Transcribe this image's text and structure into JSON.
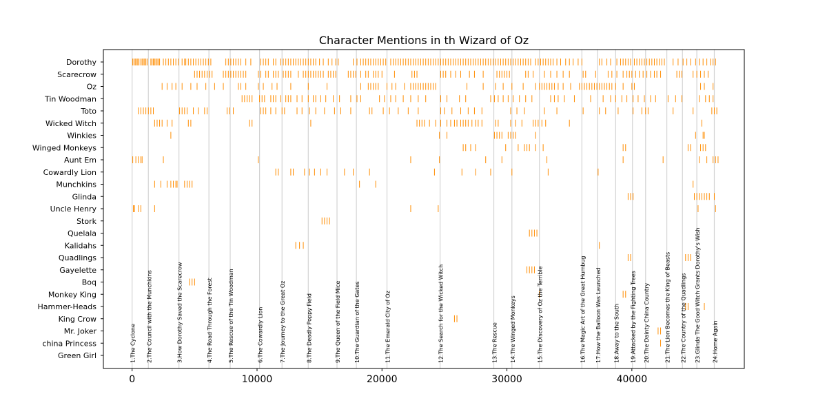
{
  "chart_data": {
    "type": "scatter",
    "title": "Character Mentions in th Wizard of Oz",
    "xlabel": "",
    "ylabel": "",
    "xlim": [
      -2300,
      49000
    ],
    "x_ticks": [
      {
        "value": 0,
        "label": "0"
      },
      {
        "value": 10000,
        "label": "10000"
      },
      {
        "value": 20000,
        "label": "20000"
      },
      {
        "value": 30000,
        "label": "30000"
      },
      {
        "value": 40000,
        "label": "40000"
      }
    ],
    "grid": false,
    "mark_color": "#ff8c00",
    "chapter_line_color": "#d3d3d3",
    "characters": [
      "Dorothy",
      "Scarecrow",
      "Oz",
      "Tin Woodman",
      "Toto",
      "Wicked Witch",
      "Winkies",
      "Winged Monkeys",
      "Aunt Em",
      "Cowardly Lion",
      "Munchkins",
      "Glinda",
      "Uncle Henry",
      "Stork",
      "Quelala",
      "Kalidahs",
      "Quadlings",
      "Gayelette",
      "Boq",
      "Monkey King",
      "Hammer-Heads",
      "King Crow",
      "Mr. Joker",
      "china Princess",
      "Green Girl"
    ],
    "chapters": [
      {
        "x": 0,
        "label": "1.The Cyclone"
      },
      {
        "x": 1300,
        "label": "2.The Council with the Munchkins"
      },
      {
        "x": 3750,
        "label": "3.How Dorothy Saved the Scarecrow"
      },
      {
        "x": 6150,
        "label": "4.The Road Through the Forest"
      },
      {
        "x": 7850,
        "label": "5.The Rescue of the Tin Woodman"
      },
      {
        "x": 10200,
        "label": "6.The Cowardly Lion"
      },
      {
        "x": 12000,
        "label": "7.The Journey to the Great Oz"
      },
      {
        "x": 14100,
        "label": "8.The Deadly Poppy Field"
      },
      {
        "x": 16400,
        "label": "9.The Queen of the Field Mice"
      },
      {
        "x": 17950,
        "label": "10.The Guardian of the Gates"
      },
      {
        "x": 20400,
        "label": "11.The Emerald City of Oz"
      },
      {
        "x": 24650,
        "label": "12.The Search for the Wicked Witch"
      },
      {
        "x": 28950,
        "label": "13.The Rescue"
      },
      {
        "x": 30400,
        "label": "14.The Winged Monkeys"
      },
      {
        "x": 32600,
        "label": "15.The Discovery of Oz the Terrible"
      },
      {
        "x": 36000,
        "label": "16.The Magic Art of the Great Humbug"
      },
      {
        "x": 37250,
        "label": "17.How the Balloon Was Launched"
      },
      {
        "x": 38700,
        "label": "18.Away to the South"
      },
      {
        "x": 40050,
        "label": "19.Attacked by the Fighting Trees"
      },
      {
        "x": 41100,
        "label": "20.The Dainty China Country"
      },
      {
        "x": 42800,
        "label": "21.The Lion Becomes the King of Beasts"
      },
      {
        "x": 44050,
        "label": "22.The Country of the Quadlings"
      },
      {
        "x": 45200,
        "label": "23.Glinda The Good Witch Grants Dorothy's Wish"
      },
      {
        "x": 46600,
        "label": "24.Home Again"
      }
    ],
    "series": [
      {
        "name": "Dorothy",
        "x": [
          50,
          150,
          250,
          350,
          450,
          550,
          700,
          800,
          900,
          1000,
          1100,
          1200,
          1500,
          1600,
          1700,
          1800,
          1900,
          2000,
          2100,
          2200,
          2500,
          2700,
          2900,
          3100,
          3300,
          3500,
          3700,
          4000,
          4200,
          4300,
          4500,
          4700,
          4900,
          5100,
          5300,
          5500,
          5700,
          5900,
          6100,
          6300,
          7500,
          7700,
          7900,
          8100,
          8300,
          8500,
          8700,
          9100,
          9500,
          10300,
          10500,
          10700,
          10900,
          11300,
          11500,
          11900,
          12100,
          12300,
          12500,
          12700,
          12900,
          13100,
          13300,
          13500,
          13700,
          13900,
          14100,
          14300,
          14500,
          14700,
          15000,
          15300,
          15700,
          16000,
          16300,
          16500,
          17700,
          18000,
          18300,
          18500,
          18700,
          18900,
          19100,
          19300,
          19500,
          19700,
          19900,
          20100,
          20300,
          20700,
          20900,
          21100,
          21300,
          21500,
          21700,
          21900,
          22100,
          22300,
          22500,
          22700,
          22900,
          23100,
          23300,
          23500,
          23700,
          23900,
          24100,
          24300,
          24500,
          24700,
          24900,
          25100,
          25300,
          25500,
          25700,
          25900,
          26100,
          26300,
          26500,
          26700,
          26900,
          27100,
          27300,
          27500,
          27700,
          27900,
          28100,
          28300,
          28500,
          28700,
          28900,
          29100,
          29300,
          29500,
          29700,
          29900,
          30100,
          30300,
          30500,
          30700,
          30900,
          31100,
          31300,
          31500,
          31700,
          31900,
          32300,
          32500,
          32700,
          32900,
          33100,
          33300,
          33500,
          33700,
          34000,
          34300,
          34700,
          35000,
          35300,
          35700,
          36000,
          37400,
          37600,
          38000,
          38300,
          38800,
          39100,
          39300,
          39500,
          39700,
          39900,
          40200,
          40400,
          40600,
          40800,
          41000,
          41200,
          41400,
          41600,
          41800,
          42000,
          42200,
          42400,
          42600,
          43300,
          43700,
          44100,
          44400,
          44700,
          45100,
          45400,
          45700,
          46000,
          46300,
          46500,
          46700
        ]
      },
      {
        "name": "Scarecrow",
        "x": [
          5000,
          5200,
          5400,
          5600,
          5800,
          6000,
          6200,
          6400,
          7300,
          7500,
          7700,
          7900,
          8100,
          8300,
          8500,
          8700,
          8900,
          9100,
          10100,
          10300,
          10700,
          10900,
          11300,
          11500,
          11700,
          12100,
          12300,
          12500,
          12700,
          13300,
          13700,
          13900,
          14100,
          14300,
          14500,
          14700,
          14900,
          15100,
          15300,
          15700,
          15900,
          16100,
          16300,
          17300,
          17500,
          17700,
          17900,
          18300,
          18700,
          18900,
          19300,
          19500,
          19700,
          20000,
          21000,
          22400,
          22600,
          22800,
          24700,
          24900,
          25100,
          25500,
          25900,
          26300,
          27000,
          27400,
          28100,
          29200,
          29400,
          29600,
          29800,
          30000,
          30200,
          31500,
          31700,
          32100,
          33000,
          33500,
          34000,
          34500,
          35000,
          36100,
          36300,
          37100,
          38100,
          38400,
          38800,
          39300,
          39600,
          39800,
          40000,
          40300,
          40600,
          40900,
          41200,
          41500,
          41800,
          42000,
          42300,
          43600,
          43800,
          44000,
          44900,
          45200,
          45500,
          45800,
          46100
        ]
      },
      {
        "name": "Oz",
        "x": [
          2400,
          2800,
          3200,
          3500,
          4000,
          4700,
          5200,
          5900,
          6600,
          7300,
          8500,
          8700,
          9100,
          10100,
          10500,
          11200,
          11600,
          12700,
          14100,
          15600,
          18300,
          18900,
          19100,
          19300,
          19500,
          19700,
          20400,
          20800,
          21100,
          21800,
          22300,
          22500,
          22700,
          22900,
          23100,
          23300,
          23500,
          23700,
          23900,
          24100,
          24300,
          26800,
          28100,
          29100,
          29700,
          30400,
          31300,
          32300,
          32600,
          32800,
          33000,
          33200,
          33400,
          33600,
          33800,
          34100,
          34500,
          35100,
          35800,
          36000,
          36200,
          36400,
          36600,
          36800,
          37000,
          37200,
          37400,
          37600,
          37800,
          38000,
          38200,
          38400,
          38700,
          39300,
          40000,
          40200,
          45500,
          45800,
          46500
        ]
      },
      {
        "name": "Tin Woodman",
        "x": [
          8800,
          9000,
          9200,
          9400,
          9600,
          10200,
          10400,
          10600,
          11100,
          11300,
          11500,
          11900,
          12300,
          12500,
          12700,
          13200,
          13600,
          14100,
          14500,
          14700,
          15100,
          15500,
          16100,
          16600,
          17500,
          18000,
          18300,
          19800,
          20200,
          20700,
          21100,
          21700,
          22300,
          22900,
          23500,
          24700,
          25200,
          26200,
          26700,
          28700,
          29000,
          29300,
          29700,
          30100,
          30500,
          31000,
          31500,
          32000,
          33500,
          33800,
          34100,
          34600,
          35400,
          36700,
          37700,
          38300,
          38700,
          39200,
          39600,
          40100,
          40500,
          41000,
          41500,
          41900,
          42900,
          43500,
          44000,
          45400,
          45900,
          46200,
          46500
        ]
      },
      {
        "name": "Toto",
        "x": [
          500,
          700,
          900,
          1100,
          1300,
          1500,
          1700,
          3800,
          4000,
          4200,
          4400,
          4900,
          5300,
          5800,
          6000,
          7600,
          7800,
          8100,
          10300,
          10500,
          10700,
          11100,
          11500,
          12000,
          12200,
          13200,
          13600,
          14200,
          14700,
          15400,
          16200,
          16700,
          17500,
          19000,
          19200,
          20100,
          20600,
          21300,
          22100,
          22900,
          24700,
          25000,
          25600,
          26300,
          26900,
          27400,
          28000,
          30300,
          30800,
          31400,
          33000,
          34000,
          36100,
          37400,
          37900,
          38900,
          40100,
          40800,
          41100,
          41300,
          43300,
          44900,
          46400,
          46600,
          46800
        ]
      },
      {
        "name": "Wicked Witch",
        "x": [
          1800,
          2000,
          2200,
          2400,
          2800,
          3200,
          4500,
          4700,
          9400,
          9600,
          14300,
          22800,
          23000,
          23200,
          23400,
          23800,
          24300,
          24700,
          25200,
          25500,
          25800,
          26000,
          26300,
          26500,
          26700,
          26900,
          27200,
          27500,
          27700,
          28000,
          29100,
          29300,
          30300,
          30700,
          31200,
          32100,
          32300,
          32500,
          32800,
          33100,
          35000,
          45600
        ]
      },
      {
        "name": "Winkies",
        "x": [
          3100,
          24600,
          25200,
          29000,
          29200,
          29400,
          29600,
          30100,
          30300,
          30500,
          30700,
          32300,
          45100,
          45700,
          45800
        ]
      },
      {
        "name": "Winged Monkeys",
        "x": [
          26500,
          26700,
          27100,
          27500,
          29900,
          30900,
          31400,
          31600,
          31800,
          32300,
          32900,
          39300,
          39500,
          44500,
          44700,
          45500,
          45700,
          45900
        ]
      },
      {
        "name": "Aunt Em",
        "x": [
          50,
          300,
          500,
          700,
          800,
          2500,
          10100,
          22300,
          24600,
          28300,
          29600,
          33200,
          39300,
          42500,
          45400,
          46000,
          46500,
          46700,
          46900
        ]
      },
      {
        "name": "Cowardly Lion",
        "x": [
          11500,
          11700,
          12700,
          12900,
          13800,
          14200,
          14600,
          15100,
          15600,
          17000,
          17700,
          19000,
          24200,
          26400,
          27500,
          28700,
          30400,
          33300,
          37300
        ]
      },
      {
        "name": "Munchkins",
        "x": [
          1800,
          2300,
          2800,
          3100,
          3300,
          3500,
          3600,
          4200,
          4400,
          4600,
          4800,
          18200,
          19500,
          44900
        ]
      },
      {
        "name": "Glinda",
        "x": [
          39700,
          39900,
          40100,
          45000,
          45200,
          45400,
          45600,
          45800,
          46000,
          46200,
          46600
        ]
      },
      {
        "name": "Uncle Henry",
        "x": [
          100,
          200,
          500,
          700,
          1800,
          22300,
          24500,
          45300,
          46700
        ]
      },
      {
        "name": "Stork",
        "x": [
          15200,
          15400,
          15600,
          15800
        ]
      },
      {
        "name": "Quelala",
        "x": [
          31800,
          32000,
          32200,
          32400
        ]
      },
      {
        "name": "Kalidahs",
        "x": [
          13100,
          13400,
          13700,
          37400
        ]
      },
      {
        "name": "Quadlings",
        "x": [
          39700,
          39900,
          44300,
          44500,
          44700
        ]
      },
      {
        "name": "Gayelette",
        "x": [
          31600,
          31800,
          32000,
          32200
        ]
      },
      {
        "name": "Boq",
        "x": [
          4600,
          4800,
          5000
        ]
      },
      {
        "name": "Monkey King",
        "x": [
          32600,
          39300,
          39500
        ]
      },
      {
        "name": "Hammer-Heads",
        "x": [
          44300,
          44500,
          45800
        ]
      },
      {
        "name": "King Crow",
        "x": [
          25800,
          26000
        ]
      },
      {
        "name": "Mr. Joker",
        "x": [
          42100,
          42300
        ]
      },
      {
        "name": "china Princess",
        "x": [
          42300
        ]
      },
      {
        "name": "Green Girl",
        "x": []
      }
    ]
  }
}
